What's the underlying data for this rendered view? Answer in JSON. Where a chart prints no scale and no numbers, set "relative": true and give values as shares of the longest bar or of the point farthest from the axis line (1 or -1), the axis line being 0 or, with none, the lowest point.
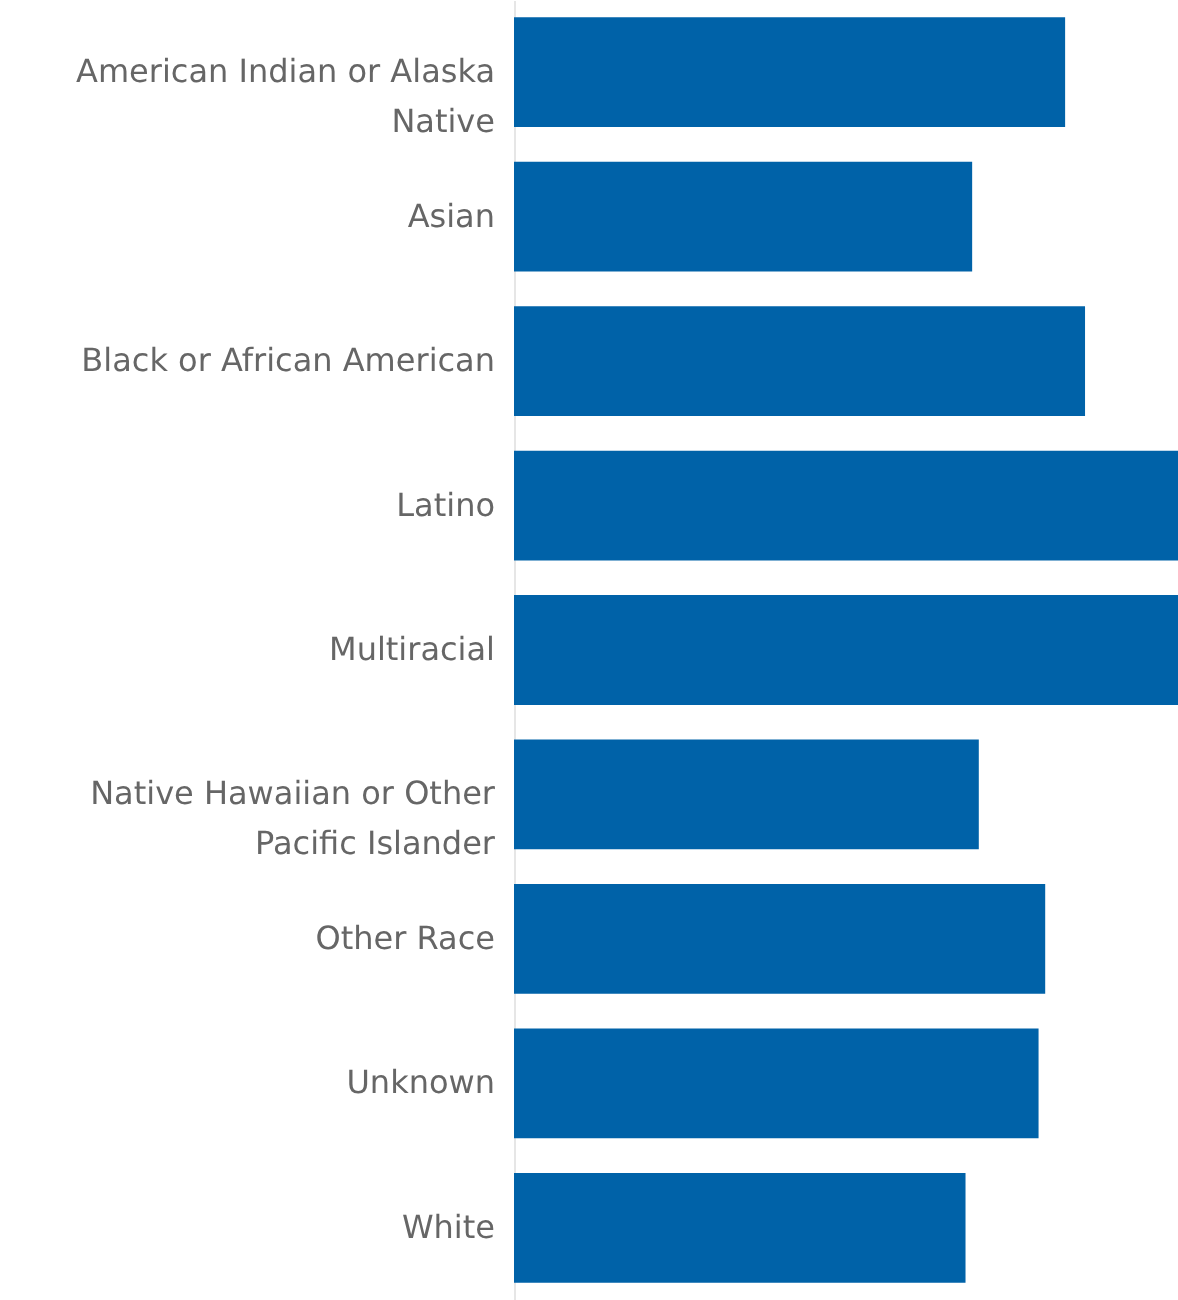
{
  "chart_data": {
    "type": "bar",
    "orientation": "horizontal",
    "relative": true,
    "color": "#0062a8",
    "categories": [
      "American Indian or Alaska Native",
      "Asian",
      "Black or African American",
      "Latino",
      "Multiracial",
      "Native Hawaiian or Other Pacific Islander",
      "Other Race",
      "Unknown",
      "White"
    ],
    "values": [
      0.83,
      0.69,
      0.86,
      1,
      1,
      0.7,
      0.8,
      0.79,
      0.68
    ]
  }
}
